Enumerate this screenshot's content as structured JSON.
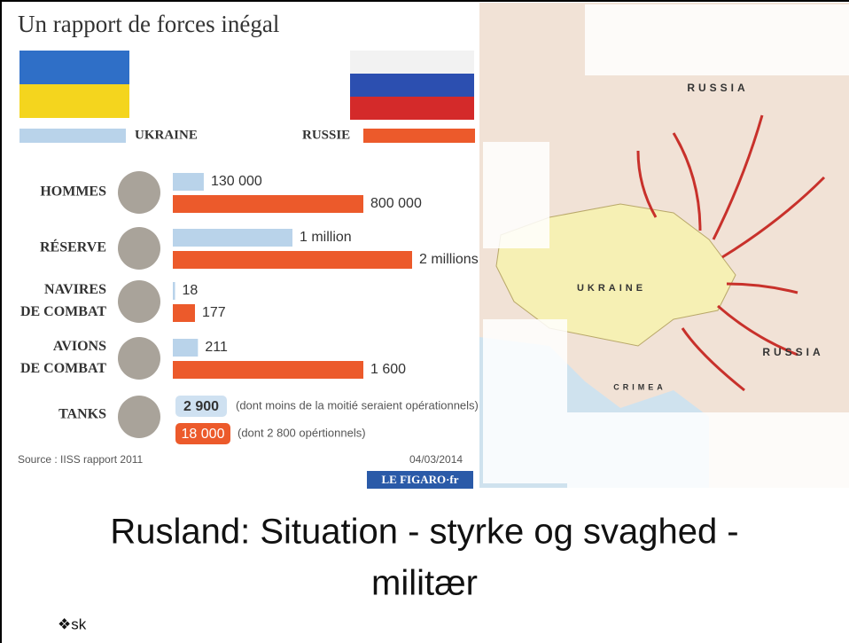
{
  "infographic": {
    "title": "Un rapport de forces inégal",
    "legend": {
      "ukraine": "UKRAINE",
      "russia": "RUSSIE"
    },
    "rows": [
      {
        "label": [
          "HOMMES"
        ],
        "ukraine": {
          "value": 130000,
          "label": "130 000"
        },
        "russia": {
          "value": 800000,
          "label": "800 000"
        }
      },
      {
        "label": [
          "RÉSERVE"
        ],
        "ukraine": {
          "value": 1000000,
          "label": "1 million"
        },
        "russia": {
          "value": 2000000,
          "label": "2 millions"
        }
      },
      {
        "label": [
          "NAVIRES",
          "DE COMBAT"
        ],
        "ukraine": {
          "value": 18,
          "label": "18"
        },
        "russia": {
          "value": 177,
          "label": "177"
        }
      },
      {
        "label": [
          "AVIONS",
          "DE COMBAT"
        ],
        "ukraine": {
          "value": 211,
          "label": "211"
        },
        "russia": {
          "value": 1600,
          "label": "1 600"
        }
      }
    ],
    "tanks": {
      "label": "TANKS",
      "ukraine": {
        "label": "2 900",
        "note": "(dont moins de la moitié seraient opérationnels)"
      },
      "russia": {
        "label": "18 000",
        "note": "(dont 2 800 opértionnels)"
      }
    },
    "source": "Source : IISS rapport 2011",
    "date": "04/03/2014",
    "logo": "LE FIGARO·fr"
  },
  "map": {
    "labels": [
      "RUSSIA",
      "UKRAINE",
      "RUSSIA",
      "CRIMEA"
    ]
  },
  "slide": {
    "title": [
      "Rusland: Situation - styrke og svaghed -",
      "militær"
    ],
    "bullet": "❖sk"
  }
}
